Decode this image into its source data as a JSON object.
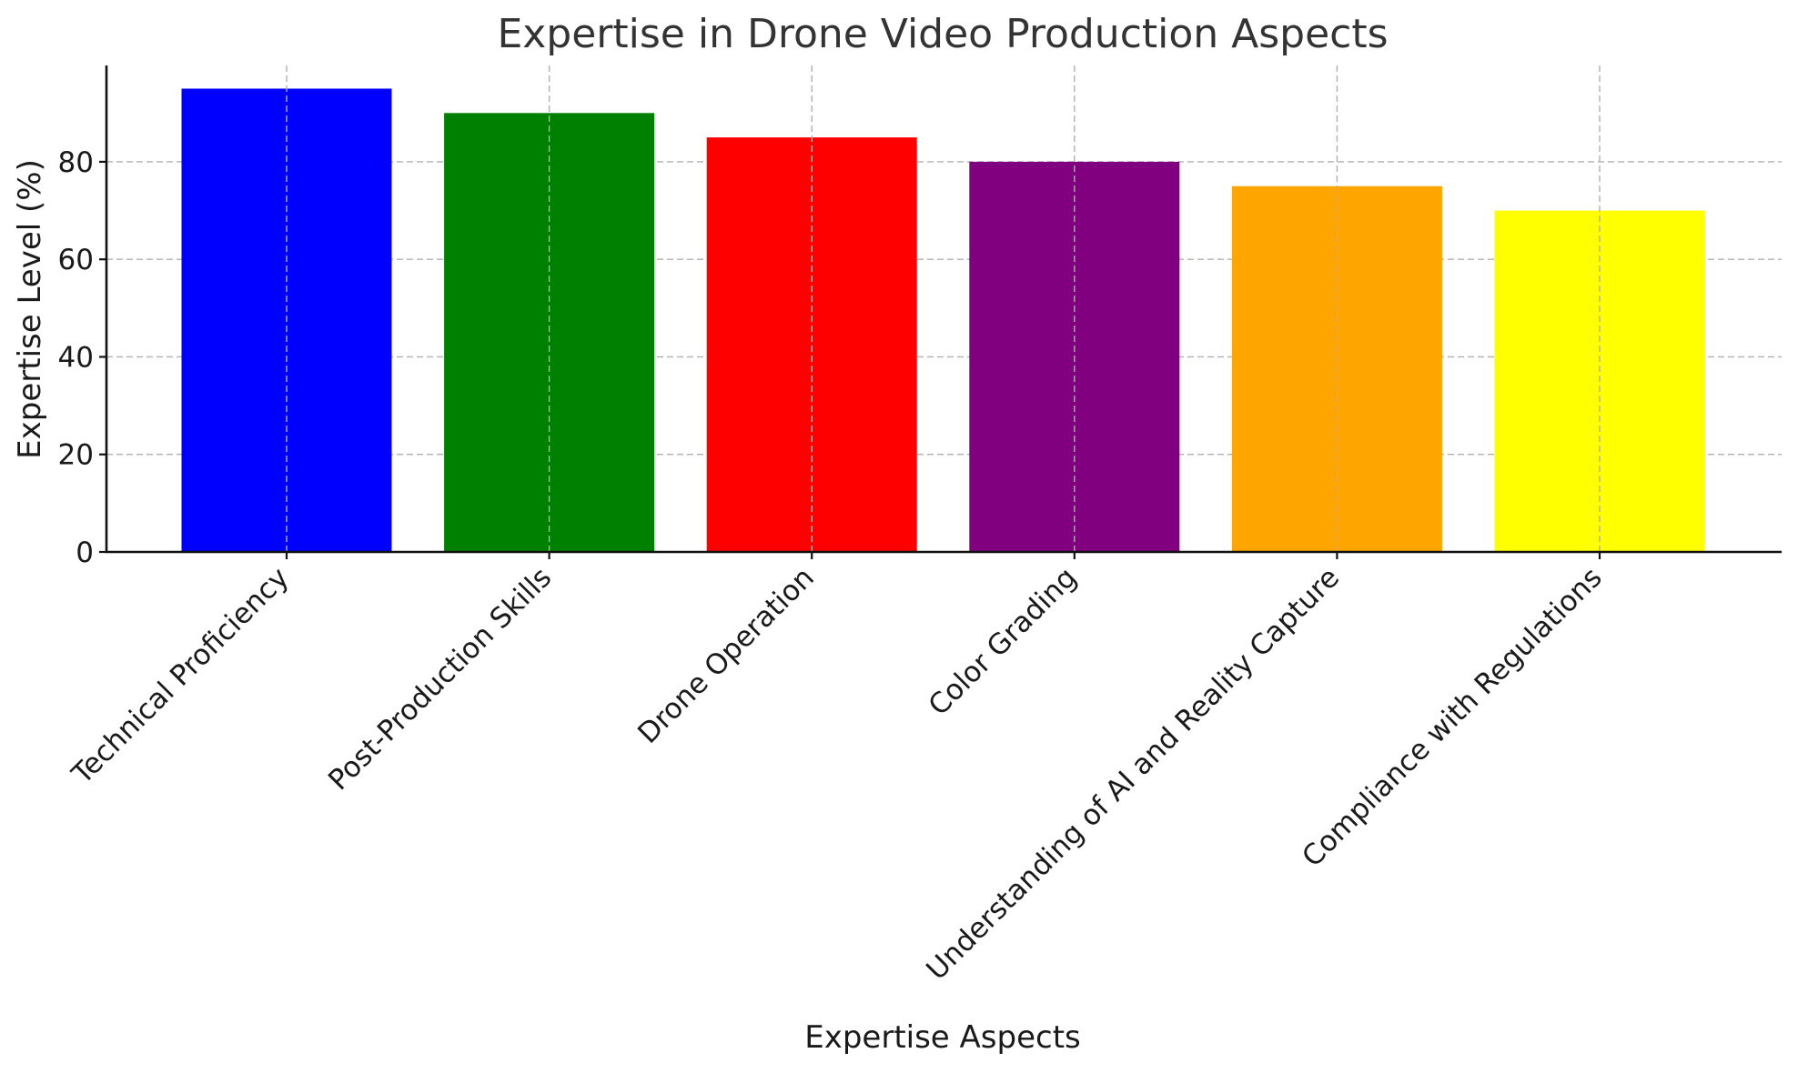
{
  "chart_data": {
    "type": "bar",
    "title": "Expertise in Drone Video Production Aspects",
    "xlabel": "Expertise Aspects",
    "ylabel": "Expertise Level (%)",
    "categories": [
      "Technical Proficiency",
      "Post-Production Skills",
      "Drone Operation",
      "Color Grading",
      "Understanding of AI and Reality Capture",
      "Compliance with Regulations"
    ],
    "values": [
      95,
      90,
      85,
      80,
      75,
      70
    ],
    "colors": [
      "#0000ff",
      "#008000",
      "#ff0000",
      "#800080",
      "#ffa500",
      "#ffff00"
    ],
    "ylim": [
      0,
      99.75
    ],
    "yticks": [
      0,
      20,
      40,
      60,
      80
    ],
    "grid": true,
    "legend": "none"
  }
}
